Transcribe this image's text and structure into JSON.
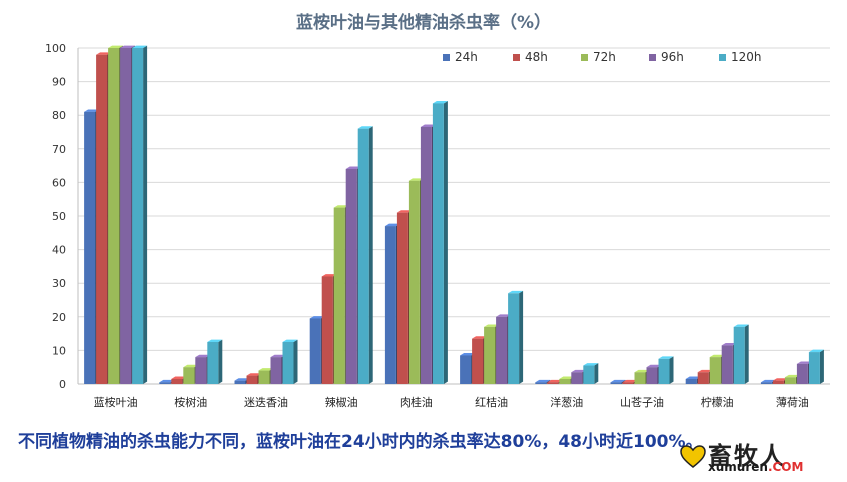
{
  "chart_data": {
    "type": "bar",
    "title": "蓝桉叶油与其他精油杀虫率（%）",
    "categories": [
      "蓝桉叶油",
      "桉树油",
      "迷迭香油",
      "辣椒油",
      "肉桂油",
      "红桔油",
      "洋葱油",
      "山苍子油",
      "柠檬油",
      "薄荷油"
    ],
    "series": [
      {
        "name": "24h",
        "color": "#4a72b8",
        "values": [
          81,
          0.5,
          1,
          19.5,
          47,
          8.5,
          0.5,
          0.5,
          1.5,
          0.5
        ]
      },
      {
        "name": "48h",
        "color": "#c0504d",
        "values": [
          98,
          1.5,
          2.5,
          32,
          51,
          13.5,
          0.5,
          0.5,
          3.5,
          1
        ]
      },
      {
        "name": "72h",
        "color": "#9bbb59",
        "values": [
          100,
          5,
          4,
          52.5,
          60.5,
          17,
          1.5,
          3.5,
          8,
          2
        ]
      },
      {
        "name": "96h",
        "color": "#8064a2",
        "values": [
          100,
          8,
          8,
          64,
          76.5,
          20,
          3.5,
          5,
          11.5,
          6
        ]
      },
      {
        "name": "120h",
        "color": "#4bacc6",
        "values": [
          100,
          12.5,
          12.5,
          76,
          83.5,
          27,
          5.5,
          7.5,
          17,
          9.5
        ]
      }
    ],
    "ylim": [
      0,
      100
    ],
    "yticks": [
      0,
      10,
      20,
      30,
      40,
      50,
      60,
      70,
      80,
      90,
      100
    ],
    "grid": true,
    "legend_position": "top-right"
  },
  "caption": "不同植物精油的杀虫能力不同，蓝桉叶油在24小时内的杀虫率达80%，48小时近100%。",
  "watermark": {
    "cn": "畜牧人",
    "en": "xumuren",
    "com": ".COM"
  }
}
